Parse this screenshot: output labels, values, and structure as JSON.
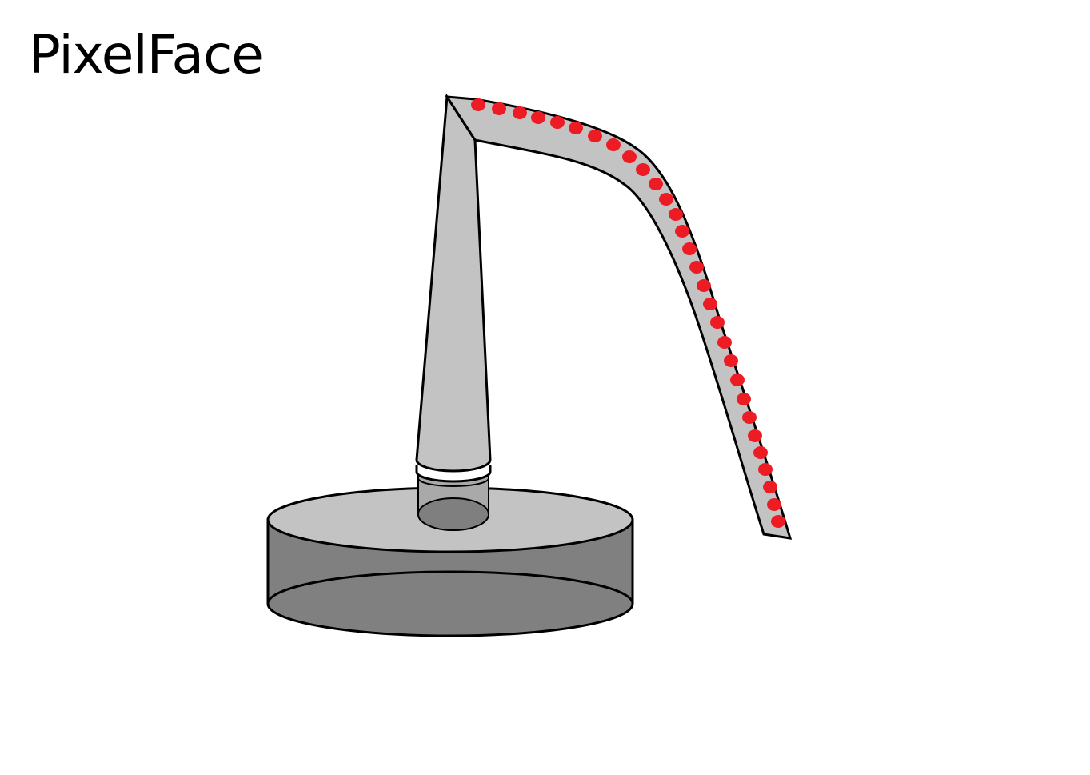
{
  "title": "PixelFace",
  "colors": {
    "background": "#ffffff",
    "outline": "#000000",
    "light_gray": "#c3c3c3",
    "mid_gray": "#a8a8a8",
    "dark_gray": "#7f7f7f",
    "base_bottom": "#808080",
    "led_red": "#ed1c24",
    "ring_white": "#ffffff"
  },
  "parts": [
    "base-disc",
    "stem",
    "white-ring",
    "arm",
    "led-dots"
  ]
}
